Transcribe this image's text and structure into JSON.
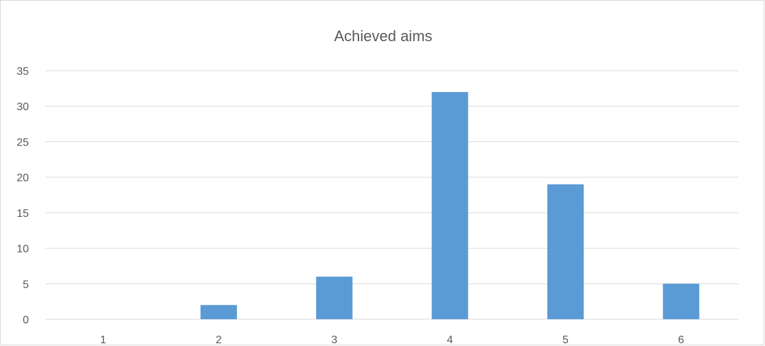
{
  "chart_data": {
    "type": "bar",
    "title": "Achieved aims",
    "xlabel": "",
    "ylabel": "",
    "categories": [
      "1",
      "2",
      "3",
      "4",
      "5",
      "6"
    ],
    "values": [
      0,
      2,
      6,
      32,
      19,
      5
    ],
    "ylim": [
      0,
      35
    ],
    "yticks": [
      0,
      5,
      10,
      15,
      20,
      25,
      30,
      35
    ],
    "grid": true,
    "legend": "none",
    "colors": {
      "bar": "#5b9bd5",
      "grid": "#d9d9d9",
      "text": "#595959"
    }
  }
}
